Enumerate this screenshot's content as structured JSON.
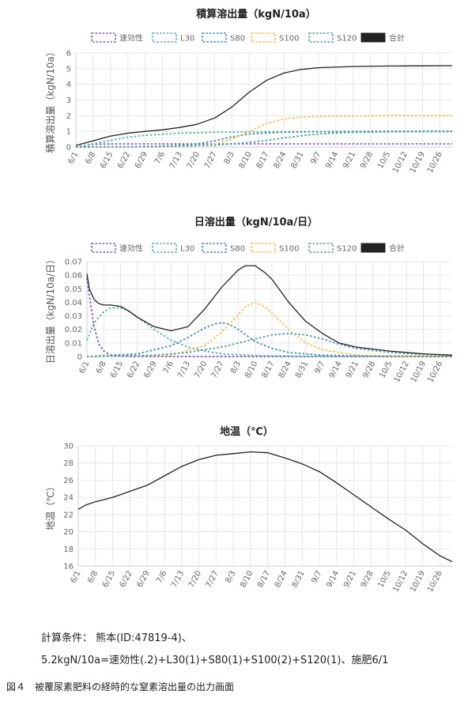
{
  "chart_data": [
    {
      "id": "cumulative",
      "type": "line",
      "title": "積算溶出量（kgN/10a）",
      "ylabel": "積算溶出量（kgN/10a）",
      "ylim": [
        0,
        6
      ],
      "yticks": [
        0,
        1,
        2,
        3,
        4,
        5,
        6
      ],
      "ytick_labels": [
        "0",
        "1",
        "2",
        "3",
        "4",
        "5",
        "6"
      ],
      "x_tick_labels": [
        "6/1",
        "6/8",
        "6/15",
        "6/22",
        "6/29",
        "7/6",
        "7/13",
        "7/20",
        "7/27",
        "8/3",
        "8/10",
        "8/17",
        "8/24",
        "8/31",
        "9/7",
        "9/14",
        "9/21",
        "9/28",
        "10/5",
        "10/12",
        "10/19",
        "10/26"
      ],
      "x_range_days": [
        0,
        152
      ],
      "grid": true,
      "legend": "top",
      "series": [
        {
          "name": "速効性",
          "color": "#7e57c2",
          "dashed": true,
          "x": [
            0,
            7,
            14,
            28,
            56,
            84,
            112,
            140,
            152
          ],
          "y": [
            0,
            0.17,
            0.2,
            0.2,
            0.2,
            0.2,
            0.2,
            0.2,
            0.2
          ]
        },
        {
          "name": "L30",
          "color": "#4db6ac",
          "dashed": true,
          "x": [
            0,
            7,
            14,
            21,
            28,
            42,
            56,
            70,
            98,
            126,
            152
          ],
          "y": [
            0,
            0.2,
            0.43,
            0.63,
            0.75,
            0.88,
            0.94,
            0.97,
            0.99,
            1.0,
            1.0
          ]
        },
        {
          "name": "S80",
          "color": "#3a8fb7",
          "dashed": true,
          "x": [
            0,
            21,
            35,
            42,
            49,
            56,
            63,
            70,
            77,
            84,
            98,
            112,
            126,
            152
          ],
          "y": [
            0,
            0.02,
            0.06,
            0.1,
            0.2,
            0.4,
            0.65,
            0.82,
            0.9,
            0.95,
            0.98,
            0.99,
            1.0,
            1.0
          ]
        },
        {
          "name": "S100",
          "color": "#f0c040",
          "dashed": true,
          "x": [
            0,
            35,
            49,
            56,
            63,
            70,
            77,
            84,
            91,
            98,
            112,
            126,
            152
          ],
          "y": [
            0,
            0.01,
            0.08,
            0.2,
            0.5,
            1.0,
            1.5,
            1.8,
            1.9,
            1.95,
            1.98,
            2.0,
            2.0
          ]
        },
        {
          "name": "S120",
          "color": "#4a9ea8",
          "dashed": true,
          "x": [
            0,
            28,
            42,
            56,
            63,
            70,
            77,
            84,
            91,
            98,
            105,
            112,
            126,
            140,
            152
          ],
          "y": [
            0,
            0.02,
            0.06,
            0.12,
            0.2,
            0.3,
            0.42,
            0.58,
            0.72,
            0.83,
            0.9,
            0.94,
            0.97,
            0.99,
            1.0
          ]
        },
        {
          "name": "合計",
          "color": "#222222",
          "dashed": false,
          "x": [
            0,
            7,
            14,
            21,
            28,
            35,
            42,
            49,
            56,
            63,
            70,
            77,
            84,
            91,
            98,
            112,
            126,
            140,
            152
          ],
          "y": [
            0.1,
            0.4,
            0.7,
            0.88,
            1.0,
            1.1,
            1.25,
            1.45,
            1.85,
            2.55,
            3.5,
            4.25,
            4.72,
            4.95,
            5.06,
            5.14,
            5.17,
            5.18,
            5.19
          ]
        }
      ]
    },
    {
      "id": "daily",
      "type": "line",
      "title": "日溶出量（kgN/10a/日）",
      "ylabel": "日溶出量（kgN/10a/日）",
      "ylim": [
        0,
        0.07
      ],
      "yticks": [
        0,
        0.01,
        0.02,
        0.03,
        0.04,
        0.05,
        0.06,
        0.07
      ],
      "ytick_labels": [
        "0",
        "0.01",
        "0.02",
        "0.03",
        "0.04",
        "0.05",
        "0.06",
        "0.07"
      ],
      "x_tick_labels": [
        "6/1",
        "6/8",
        "6/15",
        "6/22",
        "6/29",
        "7/6",
        "7/13",
        "7/20",
        "7/27",
        "8/3",
        "8/10",
        "8/17",
        "8/24",
        "8/31",
        "9/7",
        "9/14",
        "9/21",
        "9/28",
        "10/5",
        "10/12",
        "10/19",
        "10/26"
      ],
      "x_range_days": [
        0,
        152
      ],
      "grid": true,
      "legend": "top",
      "series": [
        {
          "name": "速効性",
          "color": "#7e57c2",
          "dashed": true,
          "x": [
            0,
            1,
            3,
            5,
            7,
            10,
            14,
            21,
            35,
            152
          ],
          "y": [
            0.058,
            0.045,
            0.022,
            0.009,
            0.004,
            0.001,
            0.0003,
            0,
            0,
            0
          ]
        },
        {
          "name": "L30",
          "color": "#4db6ac",
          "dashed": true,
          "x": [
            0,
            3,
            7,
            10,
            14,
            18,
            21,
            28,
            35,
            42,
            49,
            56,
            70,
            91,
            152
          ],
          "y": [
            0.012,
            0.025,
            0.033,
            0.036,
            0.036,
            0.033,
            0.029,
            0.02,
            0.012,
            0.007,
            0.004,
            0.002,
            0.0008,
            0.0002,
            0
          ]
        },
        {
          "name": "S80",
          "color": "#3a8fb7",
          "dashed": true,
          "x": [
            0,
            21,
            35,
            42,
            49,
            53,
            56,
            59,
            63,
            70,
            77,
            84,
            98,
            112,
            152
          ],
          "y": [
            0,
            0.002,
            0.008,
            0.014,
            0.021,
            0.024,
            0.025,
            0.024,
            0.02,
            0.011,
            0.006,
            0.003,
            0.001,
            0.0005,
            0
          ]
        },
        {
          "name": "S100",
          "color": "#f0c040",
          "dashed": true,
          "x": [
            0,
            35,
            49,
            56,
            63,
            66,
            70,
            74,
            77,
            84,
            91,
            98,
            112,
            126,
            152
          ],
          "y": [
            0,
            0.001,
            0.008,
            0.018,
            0.031,
            0.037,
            0.04,
            0.037,
            0.032,
            0.02,
            0.01,
            0.005,
            0.001,
            0.0003,
            0
          ]
        },
        {
          "name": "S120",
          "color": "#4a9ea8",
          "dashed": true,
          "x": [
            0,
            28,
            42,
            56,
            63,
            70,
            77,
            84,
            91,
            98,
            105,
            112,
            126,
            140,
            152
          ],
          "y": [
            0,
            0.001,
            0.003,
            0.007,
            0.01,
            0.013,
            0.016,
            0.017,
            0.016,
            0.013,
            0.009,
            0.006,
            0.003,
            0.0015,
            0.001
          ]
        },
        {
          "name": "合計",
          "color": "#222222",
          "dashed": false,
          "x": [
            0,
            1,
            3,
            5,
            7,
            10,
            14,
            17,
            21,
            28,
            35,
            42,
            49,
            56,
            63,
            66,
            70,
            74,
            77,
            84,
            91,
            98,
            105,
            112,
            126,
            140,
            152
          ],
          "y": [
            0.061,
            0.05,
            0.042,
            0.039,
            0.038,
            0.038,
            0.037,
            0.034,
            0.029,
            0.022,
            0.019,
            0.022,
            0.035,
            0.051,
            0.064,
            0.067,
            0.067,
            0.062,
            0.057,
            0.04,
            0.026,
            0.017,
            0.01,
            0.007,
            0.004,
            0.002,
            0.001
          ]
        }
      ]
    },
    {
      "id": "soiltemp",
      "type": "line",
      "title": "地温（℃）",
      "ylabel": "地温（℃）",
      "ylim": [
        16,
        30
      ],
      "yticks": [
        16,
        18,
        20,
        22,
        24,
        26,
        28,
        30
      ],
      "ytick_labels": [
        "16",
        "18",
        "20",
        "22",
        "24",
        "26",
        "28",
        "30"
      ],
      "x_tick_labels": [
        "6/1",
        "6/8",
        "6/15",
        "6/22",
        "6/29",
        "7/6",
        "7/13",
        "7/20",
        "7/27",
        "8/3",
        "8/10",
        "8/17",
        "8/24",
        "8/31",
        "9/7",
        "9/14",
        "9/21",
        "9/28",
        "10/5",
        "10/12",
        "10/19",
        "10/26"
      ],
      "x_range_days": [
        0,
        152
      ],
      "grid": true,
      "legend": "none",
      "series": [
        {
          "name": "",
          "color": "#222222",
          "dashed": false,
          "x": [
            0,
            3,
            7,
            10,
            14,
            21,
            28,
            35,
            42,
            49,
            56,
            63,
            70,
            77,
            84,
            91,
            98,
            105,
            112,
            119,
            126,
            133,
            140,
            147,
            152
          ],
          "y": [
            22.6,
            23.1,
            23.5,
            23.7,
            24.0,
            24.7,
            25.4,
            26.5,
            27.6,
            28.4,
            28.9,
            29.1,
            29.3,
            29.2,
            28.6,
            27.9,
            27.0,
            25.7,
            24.3,
            22.9,
            21.5,
            20.2,
            18.6,
            17.2,
            16.5
          ]
        }
      ]
    }
  ],
  "conditions": {
    "line1": "計算条件： 熊本(ID:47819-4)、",
    "line2": "5.2kgN/10a=速効性(.2)+L30(1)+S80(1)+S100(2)+S120(1)、施肥6/1"
  },
  "caption": "図４　被覆尿素肥料の経時的な窒素溶出量の出力画面"
}
